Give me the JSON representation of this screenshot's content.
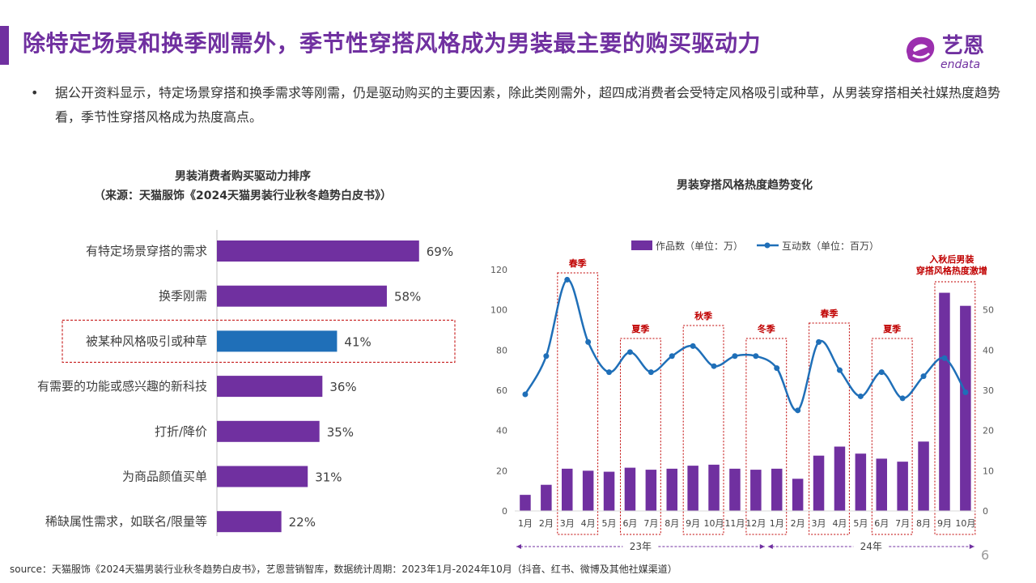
{
  "header": {
    "title": "除特定场景和换季刚需外，季节性穿搭风格成为男装最主要的购买驱动力",
    "logo_main": "艺恩",
    "logo_sub": "endata"
  },
  "bullet": {
    "dot": "•",
    "text": "据公开资料显示，特定场景穿搭和换季需求等刚需，仍是驱动购买的主要因素，除此类刚需外，超四成消费者会受特定风格吸引或种草，从男装穿搭相关社媒热度趋势看，季节性穿搭风格成为热度高点。"
  },
  "chart_data": [
    {
      "type": "bar",
      "orientation": "horizontal",
      "title": "男装消费者购买驱动力排序",
      "subtitle": "（来源：天猫服饰《2024天猫男装行业秋冬趋势白皮书》）",
      "categories": [
        "有特定场景穿搭的需求",
        "换季刚需",
        "被某种风格吸引或种草",
        "有需要的功能或感兴趣的新科技",
        "打折/降价",
        "为商品颜值买单",
        "稀缺属性需求，如联名/限量等"
      ],
      "values": [
        69,
        58,
        41,
        36,
        35,
        31,
        22
      ],
      "labels": [
        "69%",
        "58%",
        "41%",
        "36%",
        "35%",
        "31%",
        "22%"
      ],
      "highlight_index": 2,
      "colors": {
        "bar": "#7030A0",
        "highlight": "#1F6FB8",
        "highlight_box": "#C00000"
      }
    },
    {
      "type": "bar+line",
      "title": "男装穿搭风格热度趋势变化",
      "categories": [
        "1月",
        "2月",
        "3月",
        "4月",
        "5月",
        "6月",
        "7月",
        "8月",
        "9月",
        "10月",
        "11月",
        "12月",
        "1月",
        "2月",
        "3月",
        "4月",
        "5月",
        "6月",
        "7月",
        "8月",
        "9月",
        "10月"
      ],
      "series": [
        {
          "name": "作品数（单位：万）",
          "type": "bar",
          "axis": "left",
          "values": [
            8,
            13,
            21,
            20,
            19.5,
            21.5,
            20.5,
            21,
            22.5,
            23,
            21,
            20.5,
            21,
            16,
            27.5,
            32,
            28.5,
            26,
            24.5,
            34.5,
            108.5,
            102
          ],
          "color": "#7030A0"
        },
        {
          "name": "互动数（单位：百万）",
          "type": "line",
          "axis": "right",
          "values": [
            29,
            38.5,
            57.5,
            42,
            34.5,
            39.5,
            34.5,
            38.5,
            41,
            36,
            38.5,
            38.5,
            35.5,
            25,
            42,
            35,
            28.5,
            34.5,
            28,
            33.5,
            38,
            29.5
          ],
          "color": "#1F6FB8"
        }
      ],
      "y_left": {
        "min": 0,
        "max": 120,
        "ticks": [
          "0",
          "20",
          "40",
          "60",
          "80",
          "100",
          "120"
        ]
      },
      "y_right": {
        "min": 0,
        "max": 60,
        "ticks": [
          "0",
          "10",
          "20",
          "30",
          "40",
          "50"
        ]
      },
      "year_labels": [
        {
          "label": "23年",
          "start": 0,
          "end": 11
        },
        {
          "label": "24年",
          "start": 12,
          "end": 21
        }
      ],
      "season_boxes": [
        {
          "label": "春季",
          "start": 2,
          "end": 3
        },
        {
          "label": "夏季",
          "start": 5,
          "end": 6
        },
        {
          "label": "秋季",
          "start": 8,
          "end": 9
        },
        {
          "label": "冬季",
          "start": 11,
          "end": 12
        },
        {
          "label": "春季",
          "start": 14,
          "end": 15
        },
        {
          "label": "夏季",
          "start": 17,
          "end": 18
        },
        {
          "label": "入秋后男装\n穿搭风格热度激增",
          "start": 20,
          "end": 21
        }
      ],
      "legend": "top-center",
      "colors": {
        "box": "#C00000",
        "year_arrow": "#7030A0"
      }
    }
  ],
  "footer": {
    "source": "source：天猫服饰《2024天猫男装行业秋冬趋势白皮书》，艺恩营销智库，数据统计周期：2023年1月-2024年10月（抖音、红书、微博及其他社媒渠道）",
    "page": "6"
  }
}
